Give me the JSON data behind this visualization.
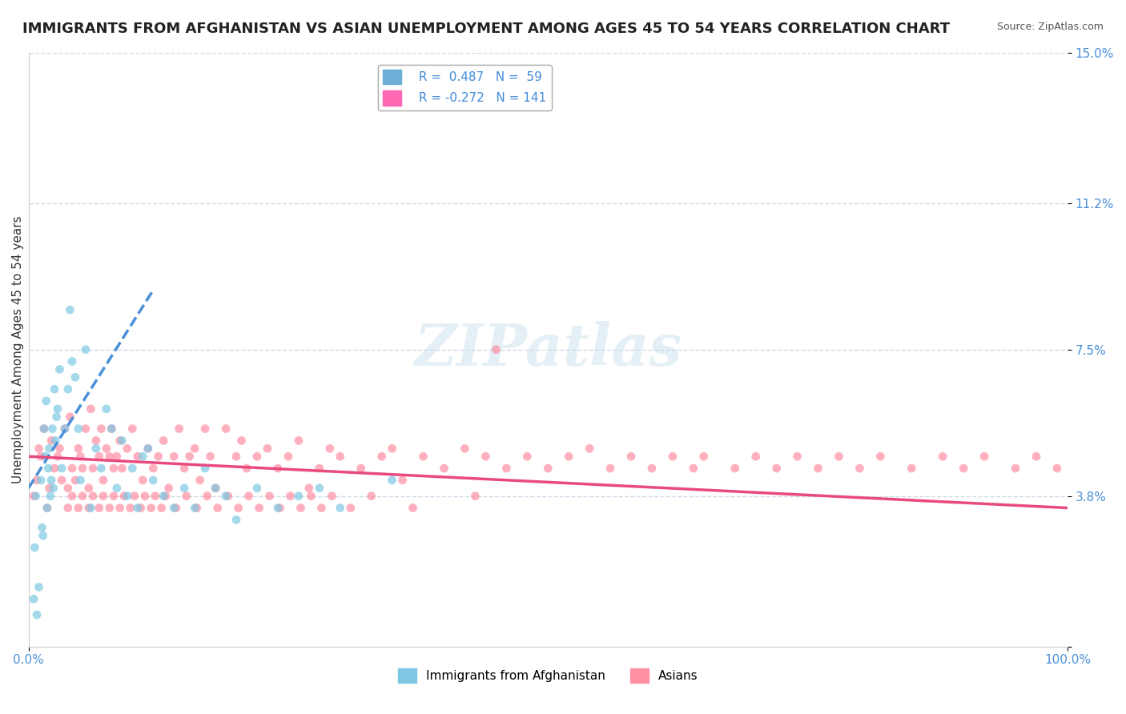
{
  "title": "IMMIGRANTS FROM AFGHANISTAN VS ASIAN UNEMPLOYMENT AMONG AGES 45 TO 54 YEARS CORRELATION CHART",
  "source": "Source: ZipAtlas.com",
  "xlabel": "",
  "ylabel": "Unemployment Among Ages 45 to 54 years",
  "xlim": [
    0.0,
    100.0
  ],
  "ylim": [
    0.0,
    15.0
  ],
  "yticks": [
    0.0,
    3.8,
    7.5,
    11.2,
    15.0
  ],
  "xticks": [
    0.0,
    100.0
  ],
  "xtick_labels": [
    "0.0%",
    "100.0%"
  ],
  "ytick_labels": [
    "",
    "3.8%",
    "7.5%",
    "11.2%",
    "15.0%"
  ],
  "legend_items": [
    {
      "label": "Immigrants from Afghanistan",
      "R": "0.487",
      "N": "59",
      "color": "#6baed6"
    },
    {
      "label": "Asians",
      "R": "-0.272",
      "N": "141",
      "color": "#ff69b4"
    }
  ],
  "watermark": "ZIPatlas",
  "blue_scatter": {
    "x": [
      0.5,
      0.6,
      0.7,
      0.8,
      1.0,
      1.2,
      1.3,
      1.4,
      1.5,
      1.6,
      1.7,
      1.8,
      1.9,
      2.0,
      2.1,
      2.2,
      2.3,
      2.4,
      2.5,
      2.6,
      2.7,
      2.8,
      3.0,
      3.2,
      3.5,
      3.8,
      4.0,
      4.2,
      4.5,
      4.8,
      5.0,
      5.5,
      6.0,
      6.5,
      7.0,
      7.5,
      8.0,
      8.5,
      9.0,
      9.5,
      10.0,
      10.5,
      11.0,
      11.5,
      12.0,
      13.0,
      14.0,
      15.0,
      16.0,
      17.0,
      18.0,
      19.0,
      20.0,
      22.0,
      24.0,
      26.0,
      28.0,
      30.0,
      35.0
    ],
    "y": [
      1.2,
      2.5,
      3.8,
      0.8,
      1.5,
      4.2,
      3.0,
      2.8,
      5.5,
      4.8,
      6.2,
      3.5,
      4.5,
      5.0,
      3.8,
      4.2,
      5.5,
      4.0,
      6.5,
      5.2,
      5.8,
      6.0,
      7.0,
      4.5,
      5.5,
      6.5,
      8.5,
      7.2,
      6.8,
      5.5,
      4.2,
      7.5,
      3.5,
      5.0,
      4.5,
      6.0,
      5.5,
      4.0,
      5.2,
      3.8,
      4.5,
      3.5,
      4.8,
      5.0,
      4.2,
      3.8,
      3.5,
      4.0,
      3.5,
      4.5,
      4.0,
      3.8,
      3.2,
      4.0,
      3.5,
      3.8,
      4.0,
      3.5,
      4.2
    ]
  },
  "pink_scatter": {
    "x": [
      0.5,
      0.8,
      1.0,
      1.2,
      1.5,
      1.8,
      2.0,
      2.2,
      2.5,
      2.8,
      3.0,
      3.2,
      3.5,
      3.8,
      4.0,
      4.2,
      4.5,
      4.8,
      5.0,
      5.2,
      5.5,
      5.8,
      6.0,
      6.2,
      6.5,
      6.8,
      7.0,
      7.2,
      7.5,
      7.8,
      8.0,
      8.2,
      8.5,
      8.8,
      9.0,
      9.5,
      10.0,
      10.5,
      11.0,
      11.5,
      12.0,
      12.5,
      13.0,
      13.5,
      14.0,
      14.5,
      15.0,
      15.5,
      16.0,
      16.5,
      17.0,
      17.5,
      18.0,
      19.0,
      20.0,
      20.5,
      21.0,
      22.0,
      23.0,
      24.0,
      25.0,
      26.0,
      27.0,
      28.0,
      29.0,
      30.0,
      32.0,
      34.0,
      35.0,
      36.0,
      38.0,
      40.0,
      42.0,
      44.0,
      45.0,
      46.0,
      48.0,
      50.0,
      52.0,
      54.0,
      56.0,
      58.0,
      60.0,
      62.0,
      64.0,
      65.0,
      68.0,
      70.0,
      72.0,
      74.0,
      76.0,
      78.0,
      80.0,
      82.0,
      85.0,
      88.0,
      90.0,
      92.0,
      95.0,
      97.0,
      99.0,
      3.8,
      4.2,
      4.8,
      5.2,
      5.8,
      6.2,
      6.8,
      7.2,
      7.8,
      8.2,
      8.8,
      9.2,
      9.8,
      10.2,
      10.8,
      11.2,
      11.8,
      12.2,
      12.8,
      13.2,
      14.2,
      15.2,
      16.2,
      17.2,
      18.2,
      19.2,
      20.2,
      21.2,
      22.2,
      23.2,
      24.2,
      25.2,
      26.2,
      27.2,
      28.2,
      29.2,
      31.0,
      33.0,
      37.0,
      43.0
    ],
    "y": [
      3.8,
      4.2,
      5.0,
      4.8,
      5.5,
      3.5,
      4.0,
      5.2,
      4.5,
      4.8,
      5.0,
      4.2,
      5.5,
      4.0,
      5.8,
      4.5,
      4.2,
      5.0,
      4.8,
      4.5,
      5.5,
      4.0,
      6.0,
      4.5,
      5.2,
      4.8,
      5.5,
      4.2,
      5.0,
      4.8,
      5.5,
      4.5,
      4.8,
      5.2,
      4.5,
      5.0,
      5.5,
      4.8,
      4.2,
      5.0,
      4.5,
      4.8,
      5.2,
      4.0,
      4.8,
      5.5,
      4.5,
      4.8,
      5.0,
      4.2,
      5.5,
      4.8,
      4.0,
      5.5,
      4.8,
      5.2,
      4.5,
      4.8,
      5.0,
      4.5,
      4.8,
      5.2,
      4.0,
      4.5,
      5.0,
      4.8,
      4.5,
      4.8,
      5.0,
      4.2,
      4.8,
      4.5,
      5.0,
      4.8,
      7.5,
      4.5,
      4.8,
      4.5,
      4.8,
      5.0,
      4.5,
      4.8,
      4.5,
      4.8,
      4.5,
      4.8,
      4.5,
      4.8,
      4.5,
      4.8,
      4.5,
      4.8,
      4.5,
      4.8,
      4.5,
      4.8,
      4.5,
      4.8,
      4.5,
      4.8,
      4.5,
      3.5,
      3.8,
      3.5,
      3.8,
      3.5,
      3.8,
      3.5,
      3.8,
      3.5,
      3.8,
      3.5,
      3.8,
      3.5,
      3.8,
      3.5,
      3.8,
      3.5,
      3.8,
      3.5,
      3.8,
      3.5,
      3.8,
      3.5,
      3.8,
      3.5,
      3.8,
      3.5,
      3.8,
      3.5,
      3.8,
      3.5,
      3.8,
      3.5,
      3.8,
      3.5,
      3.8,
      3.5,
      3.8,
      3.5,
      3.8
    ]
  },
  "blue_trend": {
    "x_start": 0.0,
    "y_start": 4.0,
    "x_end": 12.0,
    "y_end": 9.0
  },
  "pink_trend": {
    "x_start": 0.0,
    "y_start": 4.8,
    "x_end": 100.0,
    "y_end": 3.5
  },
  "scatter_size": 60,
  "scatter_alpha": 0.7,
  "blue_color": "#7ec8e3",
  "pink_color": "#ff8fa3",
  "blue_trend_color": "#4a90d9",
  "pink_trend_color": "#e84a7f",
  "grid_color": "#d0d8e8",
  "title_fontsize": 13,
  "axis_label_fontsize": 11,
  "tick_fontsize": 11,
  "legend_fontsize": 11
}
